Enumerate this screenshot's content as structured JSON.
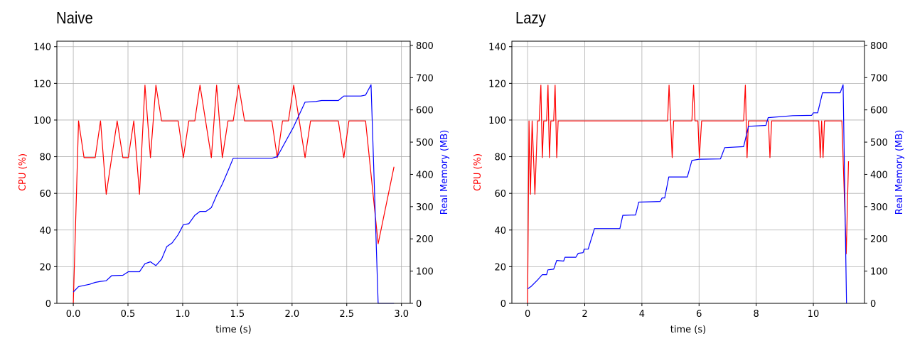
{
  "chart_data": [
    {
      "type": "line",
      "title": "Naive",
      "xlabel": "time (s)",
      "ylabel": "CPU (%)",
      "ylabel_right": "Real Memory (MB)",
      "xlim": [
        -0.15,
        3.08
      ],
      "ylim": [
        0,
        143
      ],
      "ylim_right": [
        0,
        813
      ],
      "xticks": [
        "0.0",
        "0.5",
        "1.0",
        "1.5",
        "2.0",
        "2.5",
        "3.0"
      ],
      "yticks": [
        "0",
        "20",
        "40",
        "60",
        "80",
        "100",
        "120",
        "140"
      ],
      "yticks_right": [
        "0",
        "100",
        "200",
        "300",
        "400",
        "500",
        "600",
        "700",
        "800"
      ],
      "grid": true,
      "colors": {
        "cpu": "#ff0000",
        "memory": "#0000ff"
      },
      "series": [
        {
          "axis": "left",
          "color": "#ff0000",
          "x": [
            0,
            0.048,
            0.098,
            0.2,
            0.249,
            0.301,
            0.401,
            0.453,
            0.503,
            0.553,
            0.605,
            0.655,
            0.705,
            0.755,
            0.807,
            0.959,
            1.006,
            1.056,
            1.111,
            1.158,
            1.262,
            1.31,
            1.362,
            1.414,
            1.462,
            1.512,
            1.566,
            1.815,
            1.865,
            1.913,
            1.967,
            2.015,
            2.119,
            2.169,
            2.423,
            2.473,
            2.52,
            2.672,
            2.787,
            2.932
          ],
          "y": [
            0,
            99.5,
            79.5,
            79.5,
            99.5,
            59.5,
            99.5,
            79.5,
            79.5,
            99.5,
            59.5,
            119,
            79.5,
            119,
            99.5,
            99.5,
            79.5,
            99.5,
            99.5,
            119,
            79.5,
            119,
            79.5,
            99.5,
            99.5,
            119,
            99.5,
            99.5,
            79.5,
            99.5,
            99.5,
            119,
            79.5,
            99.5,
            99.5,
            79.5,
            99.5,
            99.5,
            32.5,
            74.5
          ]
        },
        {
          "axis": "right",
          "color": "#0000ff",
          "x": [
            0,
            0.048,
            0.148,
            0.2,
            0.249,
            0.301,
            0.351,
            0.453,
            0.503,
            0.605,
            0.655,
            0.705,
            0.755,
            0.807,
            0.855,
            0.905,
            0.959,
            1.006,
            1.056,
            1.111,
            1.158,
            1.212,
            1.262,
            1.31,
            1.362,
            1.414,
            1.462,
            1.815,
            1.865,
            2.015,
            2.119,
            2.216,
            2.27,
            2.423,
            2.473,
            2.629,
            2.672,
            2.722,
            2.787,
            2.932
          ],
          "y": [
            35,
            52,
            59,
            65,
            68,
            70,
            86,
            87,
            98,
            98,
            123,
            129,
            117,
            137,
            176,
            188,
            213,
            244,
            247,
            273,
            285,
            285,
            297,
            335,
            370,
            411,
            450,
            450,
            455,
            548,
            624,
            626,
            629,
            629,
            643,
            643,
            646,
            678,
            0,
            0
          ]
        }
      ]
    },
    {
      "type": "line",
      "title": "Lazy",
      "xlabel": "time (s)",
      "ylabel": "CPU (%)",
      "ylabel_right": "Real Memory (MB)",
      "xlim": [
        -0.55,
        11.79
      ],
      "ylim": [
        0,
        143
      ],
      "ylim_right": [
        0,
        813
      ],
      "xticks": [
        "0",
        "2",
        "4",
        "6",
        "8",
        "10"
      ],
      "yticks": [
        "0",
        "20",
        "40",
        "60",
        "80",
        "100",
        "120",
        "140"
      ],
      "yticks_right": [
        "0",
        "100",
        "200",
        "300",
        "400",
        "500",
        "600",
        "700",
        "800"
      ],
      "grid": true,
      "colors": {
        "cpu": "#ff0000",
        "memory": "#0000ff"
      },
      "series": [
        {
          "axis": "left",
          "color": "#ff0000",
          "x": [
            0,
            0.05,
            0.1,
            0.158,
            0.257,
            0.348,
            0.406,
            0.464,
            0.514,
            0.564,
            0.663,
            0.713,
            0.763,
            0.813,
            0.912,
            0.962,
            1.02,
            1.07,
            4.9,
            4.95,
            5.06,
            5.11,
            5.75,
            5.81,
            5.86,
            5.96,
            6.01,
            6.09,
            7.56,
            7.62,
            7.68,
            7.73,
            8.43,
            8.48,
            8.54,
            10.19,
            10.24,
            10.29,
            10.34,
            10.39,
            11.0,
            11.15,
            11.23
          ],
          "y": [
            0,
            99.5,
            59.5,
            99.5,
            59.5,
            99.5,
            99.5,
            119,
            79.5,
            99.5,
            99.5,
            119,
            79.5,
            99.5,
            99.5,
            119,
            79.5,
            99.5,
            99.5,
            119,
            79.5,
            99.5,
            99.5,
            119,
            99.5,
            99.5,
            79.5,
            99.5,
            99.5,
            119,
            79.5,
            99.5,
            99.5,
            79.5,
            99.5,
            99.5,
            79.5,
            99.5,
            79.5,
            99.5,
            99.5,
            27,
            77.5
          ]
        },
        {
          "axis": "right",
          "color": "#0000ff",
          "x": [
            0,
            0.116,
            0.24,
            0.365,
            0.514,
            0.663,
            0.713,
            0.912,
            1.02,
            1.26,
            1.31,
            1.69,
            1.77,
            1.94,
            1.98,
            2.12,
            2.34,
            3.23,
            3.33,
            3.78,
            3.89,
            4.64,
            4.71,
            4.8,
            4.94,
            5.59,
            5.75,
            6.0,
            6.75,
            6.9,
            7.56,
            7.73,
            8.34,
            8.42,
            9.28,
            9.94,
            10.0,
            10.15,
            10.32,
            10.94,
            11.04,
            11.16
          ],
          "y": [
            45,
            52,
            63,
            74,
            89,
            89,
            104,
            106,
            133,
            131,
            143,
            143,
            155,
            157,
            168,
            168,
            232,
            232,
            273,
            274,
            314,
            316,
            327,
            327,
            392,
            392,
            443,
            447,
            448,
            483,
            486,
            549,
            552,
            576,
            582,
            583,
            591,
            591,
            653,
            653,
            678,
            0
          ]
        }
      ]
    }
  ]
}
